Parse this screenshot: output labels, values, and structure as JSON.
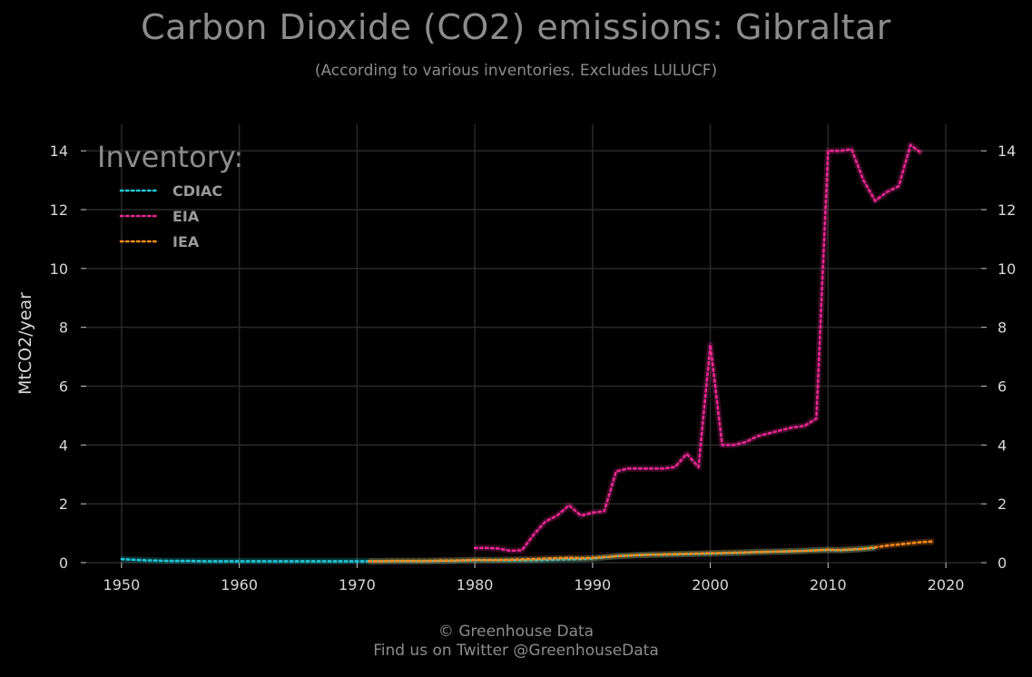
{
  "title": "Carbon Dioxide (CO2) emissions: Gibraltar",
  "subtitle": "(According to various inventories. Excludes LULUCF)",
  "footer": {
    "line1": "© Greenhouse Data",
    "line2": "Find us on Twitter @GreenhouseData"
  },
  "chart_data": {
    "type": "line",
    "ylabel": "MtCO2/year",
    "xlim": [
      1947,
      2023
    ],
    "ylim": [
      0,
      14.9
    ],
    "xticks": [
      1950,
      1960,
      1970,
      1980,
      1990,
      2000,
      2010,
      2020
    ],
    "yticks": [
      0,
      2,
      4,
      6,
      8,
      10,
      12,
      14
    ],
    "grid": true,
    "legend": {
      "title": "Inventory:",
      "placement": "top-left"
    },
    "series": [
      {
        "name": "CDIAC",
        "color": "#1ec8d8",
        "x": [
          1950,
          1951,
          1952,
          1953,
          1954,
          1955,
          1956,
          1957,
          1958,
          1959,
          1960,
          1961,
          1962,
          1963,
          1964,
          1965,
          1966,
          1967,
          1968,
          1969,
          1970,
          1971,
          1972,
          1973,
          1974,
          1975,
          1976,
          1977,
          1978,
          1979,
          1980,
          1981,
          1982,
          1983,
          1984,
          1985,
          1986,
          1987,
          1988,
          1989,
          1990,
          1991,
          1992,
          1993,
          1994,
          1995,
          1996,
          1997,
          1998,
          1999,
          2000,
          2001,
          2002,
          2003,
          2004,
          2005,
          2006,
          2007,
          2008,
          2009,
          2010,
          2011,
          2012,
          2013,
          2014
        ],
        "values": [
          0.12,
          0.1,
          0.08,
          0.07,
          0.06,
          0.06,
          0.06,
          0.05,
          0.05,
          0.05,
          0.05,
          0.05,
          0.05,
          0.05,
          0.05,
          0.05,
          0.05,
          0.05,
          0.05,
          0.05,
          0.05,
          0.05,
          0.05,
          0.05,
          0.05,
          0.05,
          0.05,
          0.06,
          0.06,
          0.07,
          0.08,
          0.08,
          0.08,
          0.08,
          0.08,
          0.08,
          0.09,
          0.1,
          0.11,
          0.12,
          0.14,
          0.18,
          0.22,
          0.24,
          0.26,
          0.27,
          0.27,
          0.28,
          0.29,
          0.3,
          0.31,
          0.32,
          0.33,
          0.34,
          0.36,
          0.37,
          0.38,
          0.39,
          0.4,
          0.42,
          0.43,
          0.42,
          0.44,
          0.47,
          0.5
        ]
      },
      {
        "name": "EIA",
        "color": "#e8298f",
        "x": [
          1980,
          1981,
          1982,
          1983,
          1984,
          1985,
          1986,
          1987,
          1988,
          1989,
          1990,
          1991,
          1992,
          1993,
          1994,
          1995,
          1996,
          1997,
          1998,
          1999,
          2000,
          2001,
          2002,
          2003,
          2004,
          2005,
          2006,
          2007,
          2008,
          2009,
          2010,
          2011,
          2012,
          2013,
          2014,
          2015,
          2016,
          2017,
          2018
        ],
        "values": [
          0.5,
          0.5,
          0.48,
          0.4,
          0.42,
          0.95,
          1.4,
          1.6,
          1.95,
          1.6,
          1.7,
          1.75,
          3.1,
          3.2,
          3.2,
          3.2,
          3.2,
          3.25,
          3.7,
          3.25,
          7.4,
          4.0,
          4.0,
          4.1,
          4.3,
          4.4,
          4.5,
          4.6,
          4.65,
          4.9,
          14.0,
          14.0,
          14.05,
          13.0,
          12.3,
          12.6,
          12.8,
          14.2,
          13.9
        ]
      },
      {
        "name": "IEA",
        "color": "#ff8c1a",
        "x": [
          1971,
          1972,
          1973,
          1974,
          1975,
          1976,
          1977,
          1978,
          1979,
          1980,
          1981,
          1982,
          1983,
          1984,
          1985,
          1986,
          1987,
          1988,
          1989,
          1990,
          1991,
          1992,
          1993,
          1994,
          1995,
          1996,
          1997,
          1998,
          1999,
          2000,
          2001,
          2002,
          2003,
          2004,
          2005,
          2006,
          2007,
          2008,
          2009,
          2010,
          2011,
          2012,
          2013,
          2014,
          2015,
          2016,
          2017,
          2018,
          2019
        ],
        "values": [
          0.05,
          0.05,
          0.06,
          0.06,
          0.06,
          0.06,
          0.07,
          0.07,
          0.08,
          0.09,
          0.09,
          0.09,
          0.1,
          0.11,
          0.12,
          0.14,
          0.15,
          0.16,
          0.15,
          0.16,
          0.19,
          0.22,
          0.24,
          0.26,
          0.27,
          0.28,
          0.29,
          0.3,
          0.31,
          0.32,
          0.33,
          0.34,
          0.35,
          0.36,
          0.37,
          0.38,
          0.39,
          0.4,
          0.42,
          0.44,
          0.43,
          0.45,
          0.47,
          0.52,
          0.58,
          0.62,
          0.66,
          0.7,
          0.72
        ]
      }
    ]
  }
}
